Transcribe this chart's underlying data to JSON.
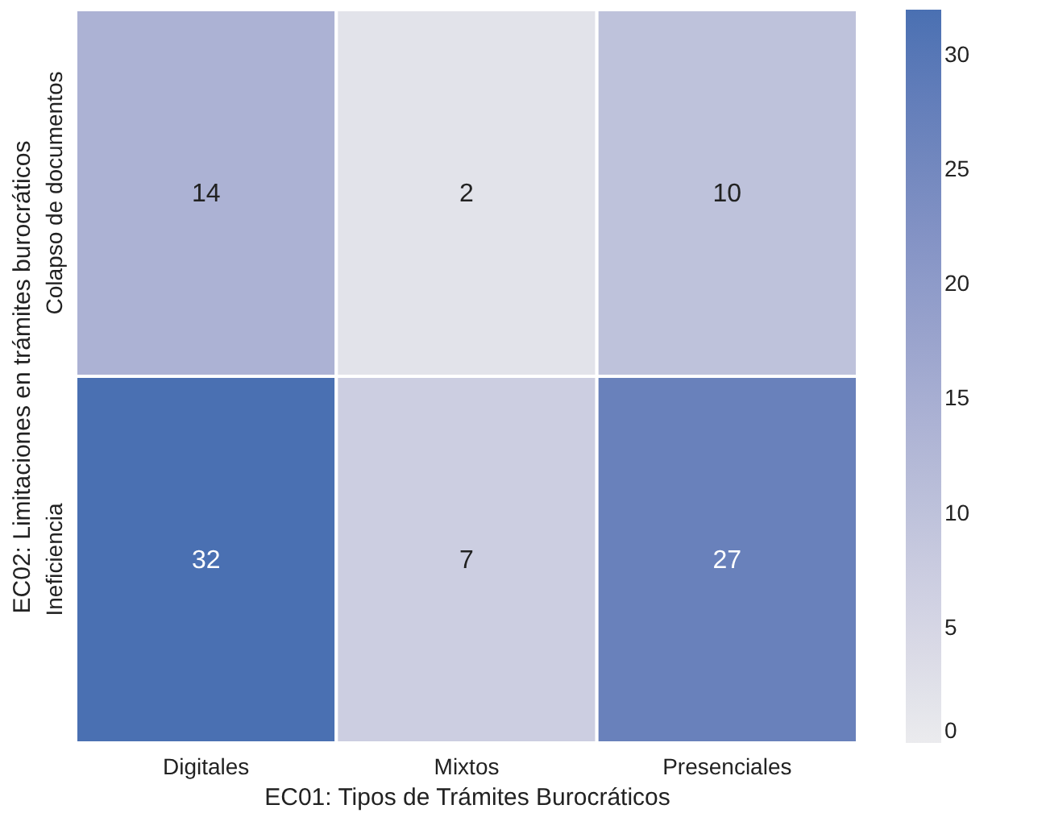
{
  "chart_data": {
    "type": "heatmap",
    "xlabel": "EC01: Tipos de Trámites Burocráticos",
    "ylabel": "EC02: Limitaciones en trámites burocráticos",
    "categories": [
      "Digitales",
      "Mixtos",
      "Presenciales"
    ],
    "y_categories": [
      "Colapso de documentos",
      "Ineficiencia"
    ],
    "cells": [
      [
        14,
        2,
        10
      ],
      [
        32,
        7,
        27
      ]
    ],
    "data_labels": true,
    "clim": [
      0,
      32
    ],
    "cticks": [
      0,
      5,
      10,
      15,
      20,
      25,
      30
    ]
  }
}
